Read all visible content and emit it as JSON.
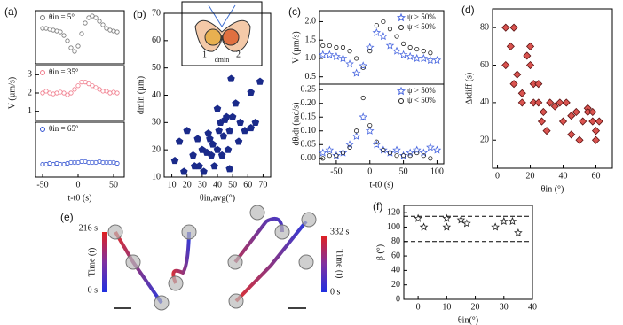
{
  "chart_data": [
    {
      "type": "scatter",
      "panel": "(a)",
      "xlim": [
        -60,
        65
      ],
      "ylim": [
        0.5,
        3.5
      ],
      "x": [
        -50,
        -45,
        -40,
        -35,
        -30,
        -25,
        -20,
        -15,
        -10,
        -5,
        0,
        5,
        10,
        15,
        20,
        25,
        30,
        35,
        40,
        45,
        50,
        55
      ],
      "series": [
        {
          "name": "θin = 5°",
          "color": "#777777",
          "marker": "circle",
          "filled": false,
          "values": [
            2.5,
            2.5,
            2.45,
            2.4,
            2.35,
            2.3,
            2.1,
            1.8,
            1.4,
            1.2,
            1.5,
            2.2,
            2.8,
            3.1,
            3.2,
            3.1,
            2.9,
            2.7,
            2.5,
            2.4,
            2.35,
            2.3
          ]
        }
      ]
    },
    {
      "type": "scatter",
      "xlim": [
        -60,
        65
      ],
      "ylim": [
        0.5,
        3.5
      ],
      "yticks": [
        1,
        2,
        3
      ],
      "ylabel": "V (µm/s)",
      "x": [
        -50,
        -45,
        -40,
        -35,
        -30,
        -25,
        -20,
        -15,
        -10,
        -5,
        0,
        5,
        10,
        15,
        20,
        25,
        30,
        35,
        40,
        45,
        50,
        55
      ],
      "series": [
        {
          "name": "θin = 35°",
          "color": "#f07a8a",
          "marker": "circle",
          "filled": false,
          "values": [
            2.0,
            2.1,
            2.0,
            1.95,
            2.0,
            2.05,
            2.0,
            1.9,
            2.0,
            2.2,
            2.4,
            2.6,
            2.6,
            2.5,
            2.4,
            2.3,
            2.2,
            2.1,
            2.1,
            2.0,
            2.05,
            2.0
          ]
        }
      ]
    },
    {
      "type": "scatter",
      "xlim": [
        -60,
        65
      ],
      "ylim": [
        0.5,
        3.5
      ],
      "xticks": [
        -50,
        0,
        50
      ],
      "xlabel": "t-t0 (s)",
      "x": [
        -50,
        -45,
        -40,
        -35,
        -30,
        -25,
        -20,
        -15,
        -10,
        -5,
        0,
        5,
        10,
        15,
        20,
        25,
        30,
        35,
        40,
        45,
        50,
        55
      ],
      "series": [
        {
          "name": "θin = 65°",
          "color": "#2f4fd0",
          "marker": "circle",
          "filled": false,
          "values": [
            1.2,
            1.2,
            1.25,
            1.2,
            1.25,
            1.2,
            1.2,
            1.25,
            1.3,
            1.3,
            1.3,
            1.35,
            1.35,
            1.3,
            1.3,
            1.3,
            1.35,
            1.3,
            1.3,
            1.3,
            1.3,
            1.25
          ]
        }
      ]
    },
    {
      "type": "scatter",
      "panel": "(b)",
      "xlim": [
        5,
        75
      ],
      "ylim": [
        10,
        70
      ],
      "xticks": [
        10,
        20,
        30,
        40,
        50,
        60,
        70
      ],
      "yticks": [
        10,
        20,
        30,
        40,
        50,
        60,
        70
      ],
      "xlabel": "θin,avg(°)",
      "ylabel": "dmin (µm)",
      "color": "#1a2a8a",
      "marker": "pentagon",
      "filled": true,
      "x": [
        12,
        15,
        18,
        20,
        24,
        25,
        27,
        28,
        30,
        31,
        33,
        34,
        35,
        36,
        37,
        38,
        40,
        40,
        41,
        42,
        43,
        44,
        45,
        46,
        47,
        48,
        48,
        49,
        50,
        52,
        54,
        55,
        58,
        62,
        62,
        65,
        68
      ],
      "values": [
        16,
        23,
        12,
        27,
        18,
        14,
        24,
        14,
        20,
        12,
        19,
        26,
        24,
        18,
        22,
        14,
        35,
        20,
        27,
        30,
        18,
        25,
        31,
        32,
        20,
        27,
        13,
        46,
        32,
        37,
        23,
        30,
        27,
        28,
        41,
        30,
        45
      ]
    },
    {
      "type": "scatter",
      "panel": "(c)",
      "xlim": [
        -75,
        110
      ],
      "ylim": [
        0.3,
        2.3
      ],
      "yticks": [
        0.5,
        {
          "value": 1,
          "label": "1.0"
        },
        1.5,
        {
          "value": 2,
          "label": "2.0"
        }
      ],
      "ylabel": "V (µm/s)",
      "legend": "top-right",
      "x": [
        -70,
        -60,
        -50,
        -40,
        -30,
        -20,
        -10,
        0,
        10,
        20,
        30,
        40,
        50,
        60,
        70,
        80,
        90,
        100
      ],
      "series": [
        {
          "name": "ψ > 50%",
          "color": "#4a68e0",
          "marker": "star",
          "filled": false,
          "values": [
            1.1,
            1.1,
            1.05,
            1.0,
            0.85,
            0.6,
            0.8,
            1.3,
            1.7,
            1.6,
            1.35,
            1.2,
            1.1,
            1.05,
            1.0,
            1.0,
            0.95,
            0.95
          ]
        },
        {
          "name": "ψ < 50%",
          "color": "#222222",
          "marker": "circle",
          "filled": false,
          "values": [
            1.35,
            1.35,
            1.3,
            1.3,
            1.2,
            1.0,
            0.75,
            1.2,
            1.9,
            2.0,
            1.8,
            1.6,
            1.4,
            1.3,
            1.25,
            1.2,
            1.15,
            null
          ]
        }
      ]
    },
    {
      "type": "scatter",
      "xlim": [
        -75,
        110
      ],
      "ylim": [
        -0.02,
        0.27
      ],
      "xticks": [
        -50,
        0,
        50,
        100
      ],
      "yticks": [
        {
          "value": 0,
          "label": "0.00"
        },
        0.05,
        {
          "value": 0.1,
          "label": "0.10"
        },
        0.15,
        {
          "value": 0.2,
          "label": "0.20"
        },
        0.25
      ],
      "xlabel": "t-t0 (s)",
      "ylabel": "dθ/dt (rad/s)",
      "legend": "top-right",
      "x": [
        -70,
        -60,
        -50,
        -40,
        -30,
        -20,
        -10,
        0,
        10,
        20,
        30,
        40,
        50,
        60,
        70,
        80,
        90,
        100
      ],
      "series": [
        {
          "name": "ψ > 50%",
          "color": "#4a68e0",
          "marker": "star",
          "filled": false,
          "values": [
            0.02,
            0.03,
            0.01,
            0.02,
            0.05,
            0.08,
            0.15,
            0.1,
            0.05,
            0.03,
            0.02,
            0.03,
            0.01,
            0.02,
            0.03,
            0.02,
            0.04,
            0.03
          ]
        },
        {
          "name": "ψ < 50%",
          "color": "#222222",
          "marker": "circle",
          "filled": false,
          "values": [
            0.0,
            0.01,
            0.01,
            0.02,
            0.04,
            0.1,
            0.22,
            0.12,
            0.06,
            0.03,
            0.02,
            0.01,
            0.01,
            0.01,
            0.02,
            0.01,
            0.0,
            null
          ]
        }
      ]
    },
    {
      "type": "scatter",
      "panel": "(d)",
      "xlim": [
        -3,
        70
      ],
      "ylim": [
        5,
        90
      ],
      "xticks": [
        0,
        20,
        40,
        60
      ],
      "yticks": [
        20,
        40,
        60,
        80
      ],
      "xlabel": "θin (°)",
      "ylabel": "Δtdiff (s)",
      "color": "#d9534f",
      "marker": "diamond",
      "filled": true,
      "x": [
        5,
        5,
        8,
        10,
        10,
        12,
        15,
        15,
        18,
        20,
        20,
        22,
        22,
        25,
        25,
        27,
        28,
        30,
        32,
        35,
        38,
        40,
        42,
        45,
        45,
        48,
        50,
        52,
        55,
        55,
        58,
        58,
        60,
        60,
        62
      ],
      "values": [
        80,
        60,
        70,
        80,
        50,
        55,
        45,
        40,
        65,
        70,
        60,
        50,
        40,
        50,
        40,
        30,
        35,
        25,
        40,
        38,
        40,
        30,
        40,
        33,
        23,
        35,
        20,
        30,
        37,
        35,
        30,
        35,
        25,
        20,
        30
      ]
    },
    {
      "type": "scatter",
      "panel": "(f)",
      "xlim": [
        -5,
        40
      ],
      "ylim": [
        0,
        130
      ],
      "xticks": [
        0,
        10,
        20,
        30,
        40
      ],
      "yticks": [
        0,
        20,
        40,
        60,
        80,
        100,
        120
      ],
      "xlabel": "θin(°)",
      "ylabel": "β (°)",
      "color": "#222222",
      "marker": "star",
      "filled": false,
      "hlines": [
        115,
        80
      ],
      "x": [
        0,
        2,
        10,
        10,
        15,
        17,
        27,
        30,
        33,
        35
      ],
      "values": [
        112,
        100,
        112,
        100,
        110,
        105,
        100,
        108,
        108,
        92
      ]
    }
  ],
  "panel_e": {
    "label": "(e)",
    "left_bar": {
      "top": "216 s",
      "title": "Time (t)",
      "bottom": "0 s"
    },
    "right_bar": {
      "top": "332 s",
      "title": "Time (t)",
      "bottom": "0 s"
    }
  },
  "inset_b": {
    "length": "dmin",
    "left": "1",
    "right": "2"
  }
}
